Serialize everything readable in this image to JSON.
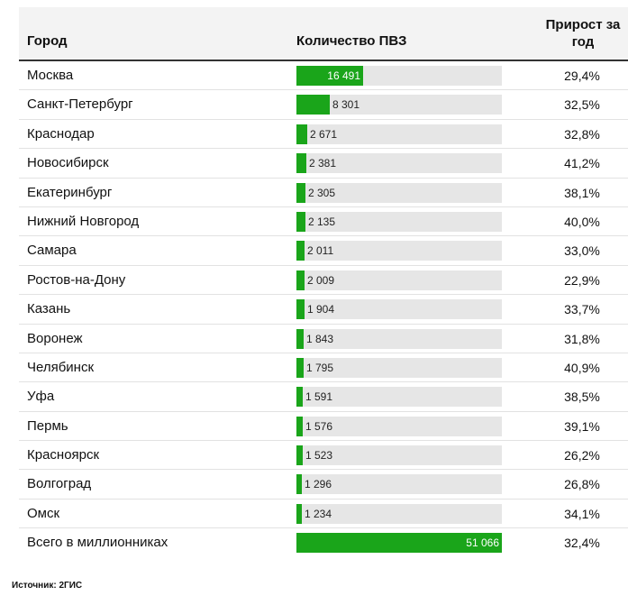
{
  "chart_data": {
    "type": "table",
    "columns": [
      "Город",
      "Количество ПВЗ",
      "Прирост за год"
    ],
    "rows": [
      {
        "city": "Москва",
        "count": 16491,
        "count_label": "16 491",
        "growth": "29,4%"
      },
      {
        "city": "Санкт-Петербург",
        "count": 8301,
        "count_label": "8 301",
        "growth": "32,5%"
      },
      {
        "city": "Краснодар",
        "count": 2671,
        "count_label": "2 671",
        "growth": "32,8%"
      },
      {
        "city": "Новосибирск",
        "count": 2381,
        "count_label": "2 381",
        "growth": "41,2%"
      },
      {
        "city": "Екатеринбург",
        "count": 2305,
        "count_label": "2 305",
        "growth": "38,1%"
      },
      {
        "city": "Нижний Новгород",
        "count": 2135,
        "count_label": "2 135",
        "growth": "40,0%"
      },
      {
        "city": "Самара",
        "count": 2011,
        "count_label": "2 011",
        "growth": "33,0%"
      },
      {
        "city": "Ростов-на-Дону",
        "count": 2009,
        "count_label": "2 009",
        "growth": "22,9%"
      },
      {
        "city": "Казань",
        "count": 1904,
        "count_label": "1 904",
        "growth": "33,7%"
      },
      {
        "city": "Воронеж",
        "count": 1843,
        "count_label": "1 843",
        "growth": "31,8%"
      },
      {
        "city": "Челябинск",
        "count": 1795,
        "count_label": "1 795",
        "growth": "40,9%"
      },
      {
        "city": "Уфа",
        "count": 1591,
        "count_label": "1 591",
        "growth": "38,5%"
      },
      {
        "city": "Пермь",
        "count": 1576,
        "count_label": "1 576",
        "growth": "39,1%"
      },
      {
        "city": "Красноярск",
        "count": 1523,
        "count_label": "1 523",
        "growth": "26,2%"
      },
      {
        "city": "Волгоград",
        "count": 1296,
        "count_label": "1 296",
        "growth": "26,8%"
      },
      {
        "city": "Омск",
        "count": 1234,
        "count_label": "1 234",
        "growth": "34,1%"
      },
      {
        "city": "Всего в миллионниках",
        "count": 51066,
        "count_label": "51 066",
        "growth": "32,4%",
        "is_total": true
      }
    ],
    "bar_max": 51066,
    "bar_color": "#1aa51a",
    "bar_track_color": "#e6e6e6",
    "header_background": "#f3f3f3"
  },
  "source": "Источник: 2ГИС"
}
